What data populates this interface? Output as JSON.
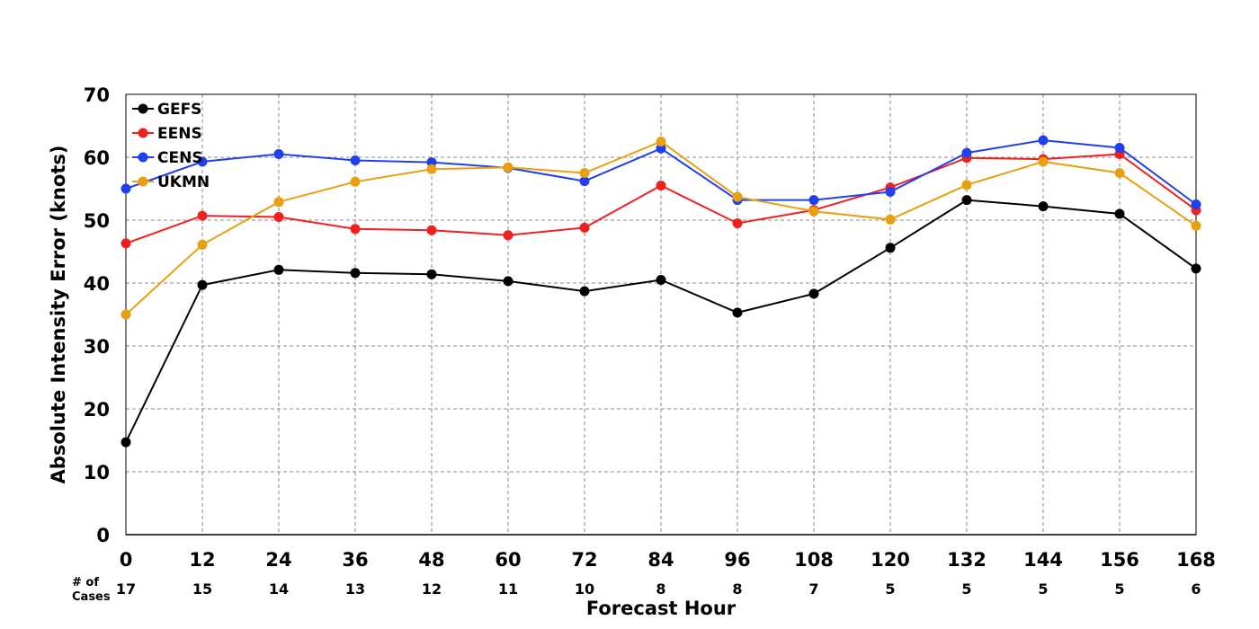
{
  "chart_data": {
    "type": "line",
    "xlabel": "Forecast Hour",
    "ylabel": "Absolute Intensity Error (knots)",
    "x": [
      0,
      12,
      24,
      36,
      48,
      60,
      72,
      84,
      96,
      108,
      120,
      132,
      144,
      156,
      168
    ],
    "xlim": [
      0,
      168
    ],
    "ylim": [
      0,
      70
    ],
    "yticks": [
      0,
      10,
      20,
      30,
      40,
      50,
      60,
      70
    ],
    "grid": true,
    "legend_position": "top-left",
    "cases_label_line1": "# of",
    "cases_label_line2": "Cases",
    "cases": [
      17,
      15,
      14,
      13,
      12,
      11,
      10,
      8,
      8,
      7,
      5,
      5,
      5,
      5,
      6
    ],
    "series": [
      {
        "name": "GEFS",
        "color": "#000000",
        "values": [
          14.7,
          39.7,
          42.1,
          41.6,
          41.4,
          40.3,
          38.7,
          40.5,
          35.3,
          38.3,
          45.6,
          53.2,
          52.2,
          51.0,
          42.3
        ]
      },
      {
        "name": "EENS",
        "color": "#f02020",
        "values": [
          46.3,
          50.7,
          50.5,
          48.6,
          48.4,
          47.6,
          48.8,
          55.5,
          49.5,
          51.6,
          55.2,
          59.9,
          59.7,
          60.5,
          51.6
        ]
      },
      {
        "name": "CENS",
        "color": "#2040f0",
        "values": [
          55.0,
          59.3,
          60.5,
          59.5,
          59.2,
          58.3,
          56.2,
          61.4,
          53.2,
          53.2,
          54.5,
          60.7,
          62.7,
          61.5,
          52.5
        ]
      },
      {
        "name": "UKMN",
        "color": "#e8a010",
        "values": [
          35.0,
          46.1,
          52.9,
          56.1,
          58.1,
          58.4,
          57.5,
          62.5,
          53.7,
          51.4,
          50.1,
          55.6,
          59.3,
          57.5,
          49.1
        ]
      }
    ]
  }
}
